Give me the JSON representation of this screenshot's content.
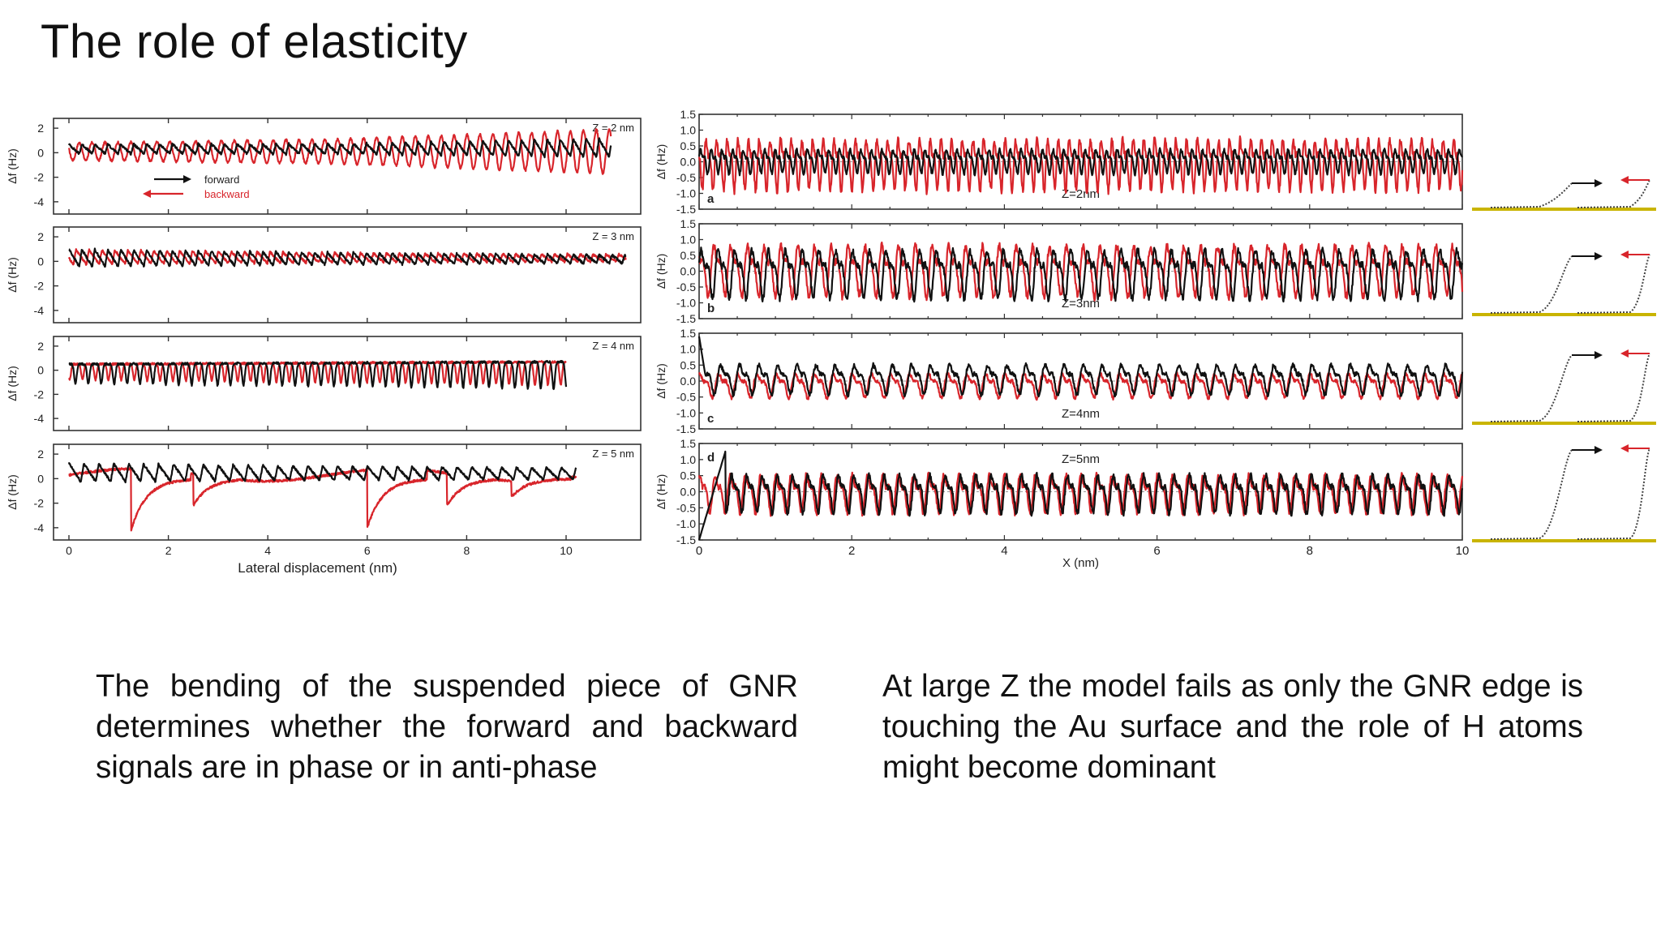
{
  "slide": {
    "title": "The role of elasticity",
    "paragraph_left": "The bending of the suspended piece of GNR determines whether the forward and backward signals are in phase or in anti-phase",
    "paragraph_right": "At large Z the model fails as only the GNR edge is touching the Au surface and the role of H atoms might become dominant"
  },
  "colors": {
    "forward": "#111111",
    "backward": "#d8252b",
    "surface": "#c9b400"
  },
  "chart_data": [
    {
      "type": "line",
      "panel": "experimental",
      "xlabel": "Lateral displacement (nm)",
      "ylabel": "Δf (Hz)",
      "xlim": [
        0,
        11
      ],
      "ylim": [
        -5,
        2.8
      ],
      "xticks": [
        "0",
        "2",
        "4",
        "6",
        "8",
        "10"
      ],
      "yticks": [
        "2",
        "0",
        "-2",
        "-4"
      ],
      "legend": {
        "placement": "inside-left",
        "entries": [
          {
            "name": "forward"
          },
          {
            "name": "backward"
          }
        ]
      },
      "subplots": [
        {
          "z_label": "Z = 2 nm",
          "x_start": 0,
          "x_end": 10.9,
          "period_nm": 0.26,
          "forward": {
            "amplitude": [
              0.8,
              0.9,
              1.6
            ],
            "offset": 0.2,
            "shape": "sawtooth"
          },
          "backward": {
            "amplitude": [
              0.7,
              1.0,
              1.8
            ],
            "offset": 0.1,
            "shape": "sine"
          }
        },
        {
          "z_label": "Z = 3 nm",
          "x_start": 0,
          "x_end": 11.2,
          "period_nm": 0.26,
          "forward": {
            "amplitude": [
              1.5,
              1.0,
              0.7
            ],
            "offset": 0.1,
            "shape": "sawtooth"
          },
          "backward": {
            "amplitude": [
              1.3,
              0.8,
              0.6
            ],
            "offset": 0.2,
            "shape": "sawtooth"
          }
        },
        {
          "z_label": "Z = 4 nm",
          "x_start": 0,
          "x_end": 10.0,
          "period_nm": 0.26,
          "forward": {
            "amplitude": [
              1.0,
              1.2,
              1.4
            ],
            "offset": 0.0,
            "shape": "dip"
          },
          "backward": {
            "amplitude": [
              0.8,
              1.0,
              1.2
            ],
            "offset": 0.1,
            "shape": "dip"
          }
        },
        {
          "z_label": "Z = 5 nm",
          "x_start": 0,
          "x_end": 10.2,
          "period_nm": 0.3,
          "forward": {
            "amplitude": [
              1.6,
              1.2,
              1.0
            ],
            "offset": 0.3,
            "shape": "sawtooth"
          },
          "backward": {
            "amplitude": [
              1.0,
              1.0,
              1.2
            ],
            "offset": -0.5,
            "shape": "slips",
            "slip_positions": [
              1.25,
              2.5,
              6.0,
              7.6,
              8.9
            ],
            "slip_depth": [
              -4.2,
              -2.2,
              -4.0,
              -2.2,
              -1.5
            ]
          }
        }
      ]
    },
    {
      "type": "line",
      "panel": "simulated",
      "xlabel": "X (nm)",
      "ylabel": "Δf (Hz)",
      "xlim": [
        0,
        10
      ],
      "ylim": [
        -1.5,
        1.5
      ],
      "xticks": [
        "0",
        "2",
        "4",
        "6",
        "8",
        "10"
      ],
      "yticks": [
        "1.5",
        "1.0",
        "0.5",
        "0.0",
        "-0.5",
        "-1.0",
        "-1.5"
      ],
      "subplots": [
        {
          "letter": "a",
          "z_label": "Z=2nm",
          "period_nm": 0.14,
          "forward": {
            "amplitude": 0.45,
            "offset": 0.05
          },
          "backward": {
            "amplitude": 0.95,
            "offset": 0.0
          }
        },
        {
          "letter": "b",
          "z_label": "Z=3nm",
          "period_nm": 0.22,
          "forward": {
            "amplitude": 0.9,
            "offset": 0.0
          },
          "backward": {
            "amplitude": 0.95,
            "offset": 0.1
          }
        },
        {
          "letter": "c",
          "z_label": "Z=4nm",
          "period_nm": 0.25,
          "forward": {
            "amplitude": 0.55,
            "offset": 0.1
          },
          "backward": {
            "amplitude": 0.45,
            "offset": -0.1
          }
        },
        {
          "letter": "d",
          "z_label": "Z=5nm",
          "period_nm": 0.2,
          "forward": {
            "amplitude": 0.7,
            "offset": 0.0
          },
          "backward": {
            "amplitude": 0.7,
            "offset": 0.0
          }
        }
      ]
    }
  ]
}
